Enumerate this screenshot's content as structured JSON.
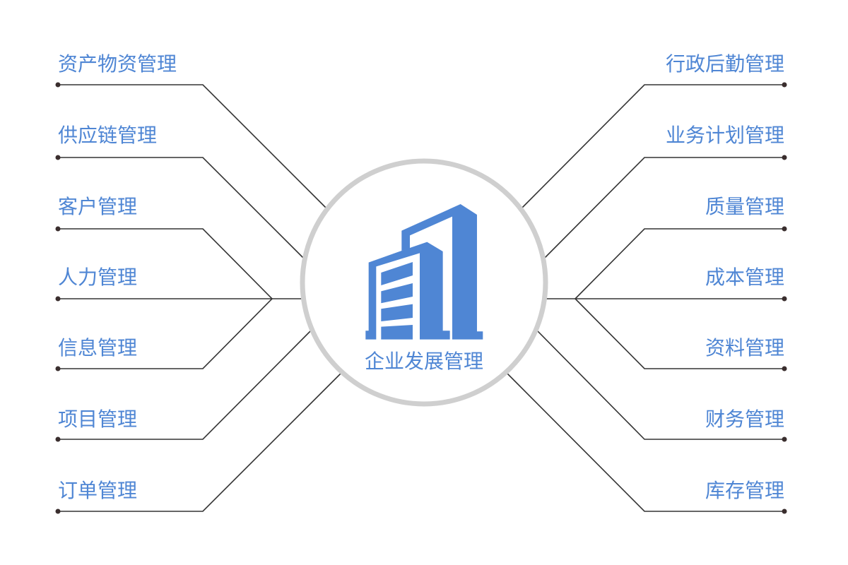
{
  "center": {
    "title": "企业发展管理",
    "icon": "building-icon"
  },
  "left_items": [
    {
      "label": "资产物资管理"
    },
    {
      "label": "供应链管理"
    },
    {
      "label": "客户管理"
    },
    {
      "label": "人力管理"
    },
    {
      "label": "信息管理"
    },
    {
      "label": "项目管理"
    },
    {
      "label": "订单管理"
    }
  ],
  "right_items": [
    {
      "label": "行政后勤管理"
    },
    {
      "label": "业务计划管理"
    },
    {
      "label": "质量管理"
    },
    {
      "label": "成本管理"
    },
    {
      "label": "资料管理"
    },
    {
      "label": "财务管理"
    },
    {
      "label": "库存管理"
    }
  ],
  "colors": {
    "accent": "#4f86d4",
    "ring": "#cfcfcf",
    "line": "#333333"
  }
}
